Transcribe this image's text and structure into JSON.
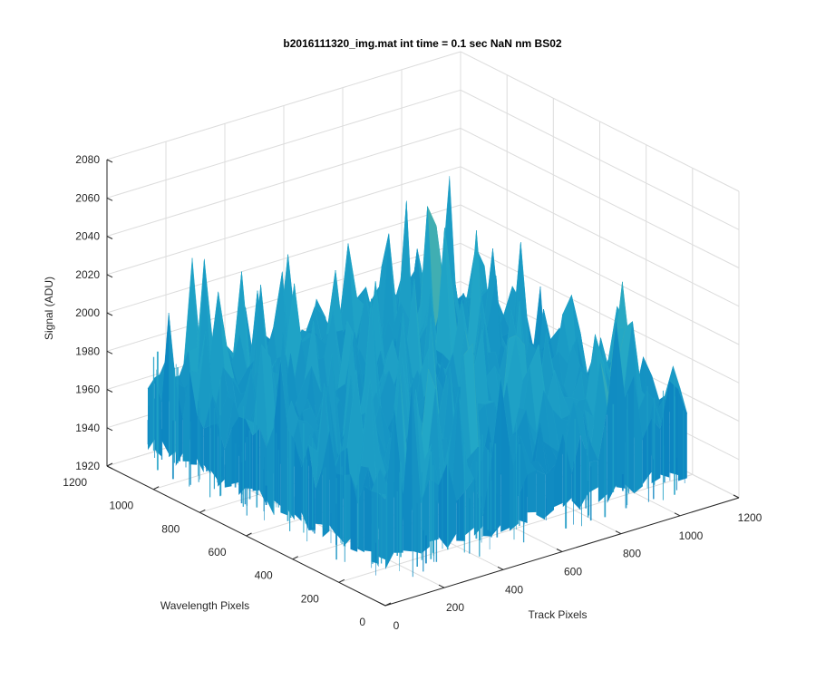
{
  "chart_data": {
    "type": "surface",
    "title": "b2016111320_img.mat int time = 0.1 sec  NaN nm BS02",
    "xlabel": "Track Pixels",
    "ylabel": "Wavelength Pixels",
    "zlabel": "Signal (ADU)",
    "xlim": [
      0,
      1200
    ],
    "ylim": [
      0,
      1200
    ],
    "zlim": [
      1920,
      2080
    ],
    "x_ticks": [
      "0",
      "200",
      "400",
      "600",
      "800",
      "1000",
      "1200"
    ],
    "y_ticks": [
      "0",
      "200",
      "400",
      "600",
      "800",
      "1000",
      "1200"
    ],
    "z_ticks": [
      "1920",
      "1940",
      "1960",
      "1980",
      "2000",
      "2020",
      "2040",
      "2060",
      "2080"
    ],
    "data_extent": {
      "x": [
        0,
        1024
      ],
      "y": [
        0,
        1024
      ]
    },
    "surface_summary": {
      "baseline_signal": 1975,
      "noise_range": [
        1930,
        2070
      ],
      "note_colormap": "parula"
    },
    "grid": true,
    "view": "3d"
  },
  "colors": {
    "low": "#0072bd",
    "mid": "#22a7c7",
    "high": "#cfd04a",
    "grid": "#dcdcdc",
    "axis": "#262626"
  }
}
